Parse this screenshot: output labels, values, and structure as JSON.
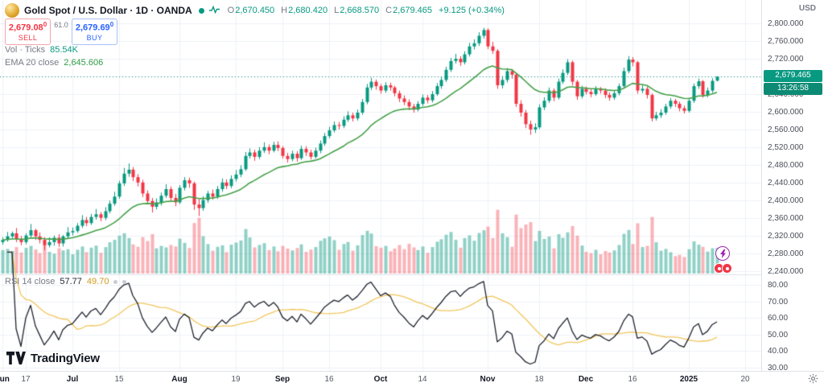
{
  "header": {
    "symbol_title": "Gold Spot / U.S. Dollar · 1D · OANDA",
    "ohlc": {
      "items": [
        {
          "k": "O",
          "v": "2,670.450"
        },
        {
          "k": "H",
          "v": "2,680.420"
        },
        {
          "k": "L",
          "v": "2,668.570"
        },
        {
          "k": "C",
          "v": "2,679.465"
        }
      ],
      "change": "+9.125 (+0.34%)"
    },
    "sell": {
      "price": "2,679.08",
      "sup": "0",
      "label": "SELL"
    },
    "spread": "61.0",
    "buy": {
      "price": "2,679.69",
      "sup": "0",
      "label": "BUY"
    },
    "volume_legend": {
      "label": "Vol · Ticks",
      "value": "85.54K"
    },
    "ema_legend": {
      "label": "EMA 20 close",
      "value": "2,645.606"
    }
  },
  "rsi_legend": {
    "label": "RSI 14 close",
    "value": "57.77",
    "ma_value": "49.70"
  },
  "price_axis": {
    "currency": "USD",
    "ticks": [
      {
        "text": "2,800.000",
        "p": 2800
      },
      {
        "text": "2,760.000",
        "p": 2760
      },
      {
        "text": "2,720.000",
        "p": 2720
      },
      {
        "text": "2,680.000",
        "p": 2680
      },
      {
        "text": "2,640.000",
        "p": 2640
      },
      {
        "text": "2,600.000",
        "p": 2600
      },
      {
        "text": "2,560.000",
        "p": 2560
      },
      {
        "text": "2,520.000",
        "p": 2520
      },
      {
        "text": "2,480.000",
        "p": 2480
      },
      {
        "text": "2,440.000",
        "p": 2440
      },
      {
        "text": "2,400.000",
        "p": 2400
      },
      {
        "text": "2,360.000",
        "p": 2360
      },
      {
        "text": "2,320.000",
        "p": 2320
      },
      {
        "text": "2,280.000",
        "p": 2280
      },
      {
        "text": "2,240.000",
        "p": 2240
      }
    ],
    "rsi_ticks": [
      {
        "text": "80.00",
        "v": 80
      },
      {
        "text": "70.00",
        "v": 70
      },
      {
        "text": "60.00",
        "v": 60
      },
      {
        "text": "50.00",
        "v": 50
      },
      {
        "text": "40.00",
        "v": 40
      },
      {
        "text": "30.00",
        "v": 30
      }
    ],
    "badge": {
      "text": "2,679.465",
      "price": 2679.465
    },
    "countdown": "13:26:58"
  },
  "time_axis": {
    "labels": [
      {
        "text": "Jun",
        "i": 0,
        "bold": true
      },
      {
        "text": "17",
        "i": 5
      },
      {
        "text": "Jul",
        "i": 15,
        "bold": true
      },
      {
        "text": "15",
        "i": 25
      },
      {
        "text": "Aug",
        "i": 38,
        "bold": true
      },
      {
        "text": "19",
        "i": 50
      },
      {
        "text": "Sep",
        "i": 60,
        "bold": true
      },
      {
        "text": "16",
        "i": 70
      },
      {
        "text": "Oct",
        "i": 81,
        "bold": true
      },
      {
        "text": "14",
        "i": 90
      },
      {
        "text": "Nov",
        "i": 104,
        "bold": true
      },
      {
        "text": "18",
        "i": 115
      },
      {
        "text": "Dec",
        "i": 125,
        "bold": true
      },
      {
        "text": "16",
        "i": 135
      },
      {
        "text": "2025",
        "i": 147,
        "bold": true
      },
      {
        "text": "20",
        "i": 159
      }
    ]
  },
  "footer": {
    "logo_text": "TradingView"
  },
  "chart_data": {
    "type": "candlestick",
    "title": "Gold Spot / U.S. Dollar, 1D, OANDA",
    "symbol": "XAUUSD",
    "timeframe": "1D",
    "price_ylim": [
      2232,
      2853
    ],
    "total_slots": 163,
    "volume_max_k": 230,
    "last_price": 2679.465,
    "colors": {
      "up": "#089981",
      "down": "#f23645",
      "vol_up": "rgba(8,153,129,0.45)",
      "vol_down": "rgba(242,54,69,0.38)",
      "grid": "#eef1f6",
      "separator": "#e0e3eb",
      "last_price": "#089981"
    },
    "indicators": {
      "ema": {
        "period": 20,
        "color": "#43a047",
        "last": 2645.606
      },
      "rsi": {
        "period": 14,
        "ma_period": 14,
        "color": "#1e222d",
        "ma_color": "#f1c65c",
        "last": 57.77,
        "ma_last": 49.7,
        "ylim": [
          28,
          86
        ]
      }
    },
    "candles": [
      [
        2305,
        2316,
        2299,
        2310,
        78
      ],
      [
        2310,
        2328,
        2306,
        2318,
        82
      ],
      [
        2318,
        2329,
        2313,
        2325,
        75
      ],
      [
        2325,
        2337,
        2305,
        2312,
        88
      ],
      [
        2312,
        2319,
        2298,
        2305,
        70
      ],
      [
        2305,
        2325,
        2300,
        2320,
        85
      ],
      [
        2320,
        2346,
        2316,
        2332,
        92
      ],
      [
        2332,
        2335,
        2310,
        2318,
        80
      ],
      [
        2318,
        2327,
        2302,
        2310,
        68
      ],
      [
        2310,
        2316,
        2287,
        2298,
        95
      ],
      [
        2298,
        2316,
        2293,
        2305,
        72
      ],
      [
        2305,
        2320,
        2297,
        2315,
        66
      ],
      [
        2315,
        2323,
        2294,
        2302,
        84
      ],
      [
        2302,
        2321,
        2295,
        2318,
        77
      ],
      [
        2318,
        2339,
        2314,
        2327,
        81
      ],
      [
        2327,
        2338,
        2320,
        2330,
        64
      ],
      [
        2330,
        2348,
        2326,
        2342,
        79
      ],
      [
        2342,
        2366,
        2337,
        2355,
        90
      ],
      [
        2355,
        2362,
        2341,
        2348,
        71
      ],
      [
        2348,
        2369,
        2344,
        2362,
        86
      ],
      [
        2362,
        2380,
        2356,
        2368,
        93
      ],
      [
        2368,
        2373,
        2352,
        2360,
        69
      ],
      [
        2360,
        2384,
        2355,
        2375,
        88
      ],
      [
        2375,
        2399,
        2370,
        2392,
        104
      ],
      [
        2392,
        2419,
        2387,
        2408,
        112
      ],
      [
        2408,
        2444,
        2403,
        2438,
        126
      ],
      [
        2438,
        2473,
        2432,
        2460,
        134
      ],
      [
        2460,
        2483,
        2453,
        2469,
        118
      ],
      [
        2469,
        2475,
        2443,
        2452,
        97
      ],
      [
        2452,
        2459,
        2431,
        2440,
        89
      ],
      [
        2440,
        2446,
        2407,
        2415,
        121
      ],
      [
        2415,
        2422,
        2390,
        2398,
        108
      ],
      [
        2398,
        2405,
        2372,
        2385,
        131
      ],
      [
        2385,
        2404,
        2379,
        2395,
        84
      ],
      [
        2395,
        2417,
        2388,
        2410,
        92
      ],
      [
        2410,
        2436,
        2405,
        2425,
        87
      ],
      [
        2425,
        2431,
        2398,
        2405,
        95
      ],
      [
        2405,
        2414,
        2386,
        2395,
        90
      ],
      [
        2395,
        2434,
        2391,
        2428,
        116
      ],
      [
        2428,
        2452,
        2422,
        2445,
        102
      ],
      [
        2445,
        2451,
        2428,
        2438,
        85
      ],
      [
        2438,
        2442,
        2378,
        2390,
        168
      ],
      [
        2390,
        2402,
        2364,
        2382,
        185
      ],
      [
        2382,
        2409,
        2376,
        2400,
        124
      ],
      [
        2400,
        2421,
        2394,
        2415,
        98
      ],
      [
        2415,
        2424,
        2401,
        2408,
        76
      ],
      [
        2408,
        2432,
        2403,
        2425,
        89
      ],
      [
        2425,
        2449,
        2419,
        2440,
        94
      ],
      [
        2440,
        2447,
        2425,
        2432,
        71
      ],
      [
        2432,
        2456,
        2427,
        2448,
        96
      ],
      [
        2448,
        2468,
        2442,
        2458,
        103
      ],
      [
        2458,
        2479,
        2452,
        2470,
        110
      ],
      [
        2470,
        2509,
        2466,
        2500,
        148
      ],
      [
        2500,
        2517,
        2494,
        2508,
        120
      ],
      [
        2508,
        2514,
        2489,
        2498,
        87
      ],
      [
        2498,
        2520,
        2493,
        2512,
        95
      ],
      [
        2512,
        2531,
        2507,
        2520,
        101
      ],
      [
        2520,
        2526,
        2504,
        2512,
        78
      ],
      [
        2512,
        2532,
        2508,
        2525,
        90
      ],
      [
        2525,
        2533,
        2511,
        2518,
        74
      ],
      [
        2518,
        2522,
        2494,
        2500,
        92
      ],
      [
        2500,
        2507,
        2485,
        2493,
        83
      ],
      [
        2493,
        2512,
        2488,
        2505,
        77
      ],
      [
        2505,
        2511,
        2487,
        2495,
        85
      ],
      [
        2495,
        2523,
        2491,
        2516,
        97
      ],
      [
        2516,
        2522,
        2500,
        2508,
        72
      ],
      [
        2508,
        2514,
        2492,
        2498,
        80
      ],
      [
        2498,
        2519,
        2494,
        2512,
        88
      ],
      [
        2512,
        2535,
        2506,
        2528,
        109
      ],
      [
        2528,
        2552,
        2523,
        2545,
        117
      ],
      [
        2545,
        2566,
        2540,
        2558,
        123
      ],
      [
        2558,
        2578,
        2553,
        2570,
        111
      ],
      [
        2570,
        2577,
        2560,
        2568,
        79
      ],
      [
        2568,
        2590,
        2563,
        2582,
        98
      ],
      [
        2582,
        2601,
        2577,
        2592,
        105
      ],
      [
        2592,
        2598,
        2578,
        2585,
        76
      ],
      [
        2585,
        2605,
        2580,
        2598,
        94
      ],
      [
        2598,
        2629,
        2593,
        2622,
        128
      ],
      [
        2622,
        2663,
        2617,
        2655,
        142
      ],
      [
        2655,
        2677,
        2649,
        2668,
        133
      ],
      [
        2668,
        2673,
        2650,
        2658,
        91
      ],
      [
        2658,
        2663,
        2641,
        2648,
        86
      ],
      [
        2648,
        2667,
        2643,
        2660,
        92
      ],
      [
        2660,
        2666,
        2648,
        2655,
        74
      ],
      [
        2655,
        2659,
        2635,
        2642,
        83
      ],
      [
        2642,
        2648,
        2622,
        2630,
        95
      ],
      [
        2630,
        2637,
        2615,
        2622,
        81
      ],
      [
        2622,
        2628,
        2604,
        2612,
        99
      ],
      [
        2612,
        2618,
        2598,
        2605,
        87
      ],
      [
        2605,
        2624,
        2601,
        2618,
        78
      ],
      [
        2618,
        2639,
        2613,
        2632,
        90
      ],
      [
        2632,
        2638,
        2619,
        2626,
        69
      ],
      [
        2626,
        2647,
        2621,
        2640,
        88
      ],
      [
        2640,
        2665,
        2636,
        2658,
        106
      ],
      [
        2658,
        2679,
        2652,
        2672,
        114
      ],
      [
        2672,
        2702,
        2667,
        2695,
        129
      ],
      [
        2695,
        2722,
        2690,
        2715,
        138
      ],
      [
        2715,
        2731,
        2709,
        2720,
        112
      ],
      [
        2720,
        2726,
        2704,
        2712,
        86
      ],
      [
        2712,
        2737,
        2707,
        2730,
        118
      ],
      [
        2730,
        2756,
        2725,
        2748,
        127
      ],
      [
        2748,
        2764,
        2741,
        2755,
        109
      ],
      [
        2755,
        2780,
        2749,
        2772,
        135
      ],
      [
        2772,
        2790,
        2766,
        2785,
        144
      ],
      [
        2785,
        2789,
        2742,
        2748,
        156
      ],
      [
        2748,
        2758,
        2731,
        2738,
        118
      ],
      [
        2738,
        2742,
        2652,
        2660,
        212
      ],
      [
        2660,
        2681,
        2653,
        2672,
        134
      ],
      [
        2672,
        2699,
        2666,
        2692,
        121
      ],
      [
        2692,
        2697,
        2675,
        2684,
        89
      ],
      [
        2684,
        2688,
        2611,
        2618,
        196
      ],
      [
        2618,
        2626,
        2589,
        2598,
        151
      ],
      [
        2598,
        2604,
        2563,
        2572,
        163
      ],
      [
        2572,
        2580,
        2548,
        2560,
        171
      ],
      [
        2560,
        2574,
        2552,
        2565,
        108
      ],
      [
        2565,
        2617,
        2561,
        2610,
        142
      ],
      [
        2610,
        2633,
        2604,
        2625,
        115
      ],
      [
        2625,
        2655,
        2620,
        2648,
        123
      ],
      [
        2648,
        2653,
        2624,
        2632,
        84
      ],
      [
        2632,
        2675,
        2628,
        2668,
        131
      ],
      [
        2668,
        2696,
        2663,
        2688,
        119
      ],
      [
        2688,
        2719,
        2683,
        2712,
        137
      ],
      [
        2712,
        2716,
        2660,
        2668,
        158
      ],
      [
        2668,
        2672,
        2627,
        2635,
        126
      ],
      [
        2635,
        2659,
        2630,
        2652,
        93
      ],
      [
        2652,
        2657,
        2639,
        2645,
        72
      ],
      [
        2645,
        2651,
        2633,
        2640,
        68
      ],
      [
        2640,
        2658,
        2636,
        2652,
        79
      ],
      [
        2652,
        2656,
        2641,
        2648,
        64
      ],
      [
        2648,
        2653,
        2631,
        2638,
        75
      ],
      [
        2638,
        2644,
        2625,
        2632,
        70
      ],
      [
        2632,
        2649,
        2627,
        2642,
        77
      ],
      [
        2642,
        2664,
        2637,
        2658,
        95
      ],
      [
        2658,
        2700,
        2653,
        2692,
        132
      ],
      [
        2692,
        2726,
        2687,
        2718,
        145
      ],
      [
        2718,
        2724,
        2703,
        2712,
        98
      ],
      [
        2712,
        2715,
        2641,
        2648,
        167
      ],
      [
        2648,
        2660,
        2642,
        2652,
        88
      ],
      [
        2652,
        2657,
        2630,
        2638,
        92
      ],
      [
        2638,
        2642,
        2578,
        2585,
        188
      ],
      [
        2585,
        2600,
        2580,
        2592,
        104
      ],
      [
        2592,
        2606,
        2586,
        2598,
        76
      ],
      [
        2598,
        2618,
        2593,
        2612,
        82
      ],
      [
        2612,
        2631,
        2607,
        2625,
        71
      ],
      [
        2625,
        2629,
        2611,
        2618,
        58
      ],
      [
        2618,
        2623,
        2601,
        2608,
        62
      ],
      [
        2608,
        2614,
        2596,
        2602,
        55
      ],
      [
        2602,
        2631,
        2598,
        2625,
        81
      ],
      [
        2625,
        2664,
        2620,
        2658,
        107
      ],
      [
        2658,
        2675,
        2652,
        2669,
        96
      ],
      [
        2669,
        2672,
        2632,
        2638,
        89
      ],
      [
        2638,
        2655,
        2633,
        2648,
        73
      ],
      [
        2648,
        2676,
        2643,
        2670,
        84
      ],
      [
        2670.45,
        2680.42,
        2668.57,
        2679.465,
        85.54
      ]
    ]
  }
}
